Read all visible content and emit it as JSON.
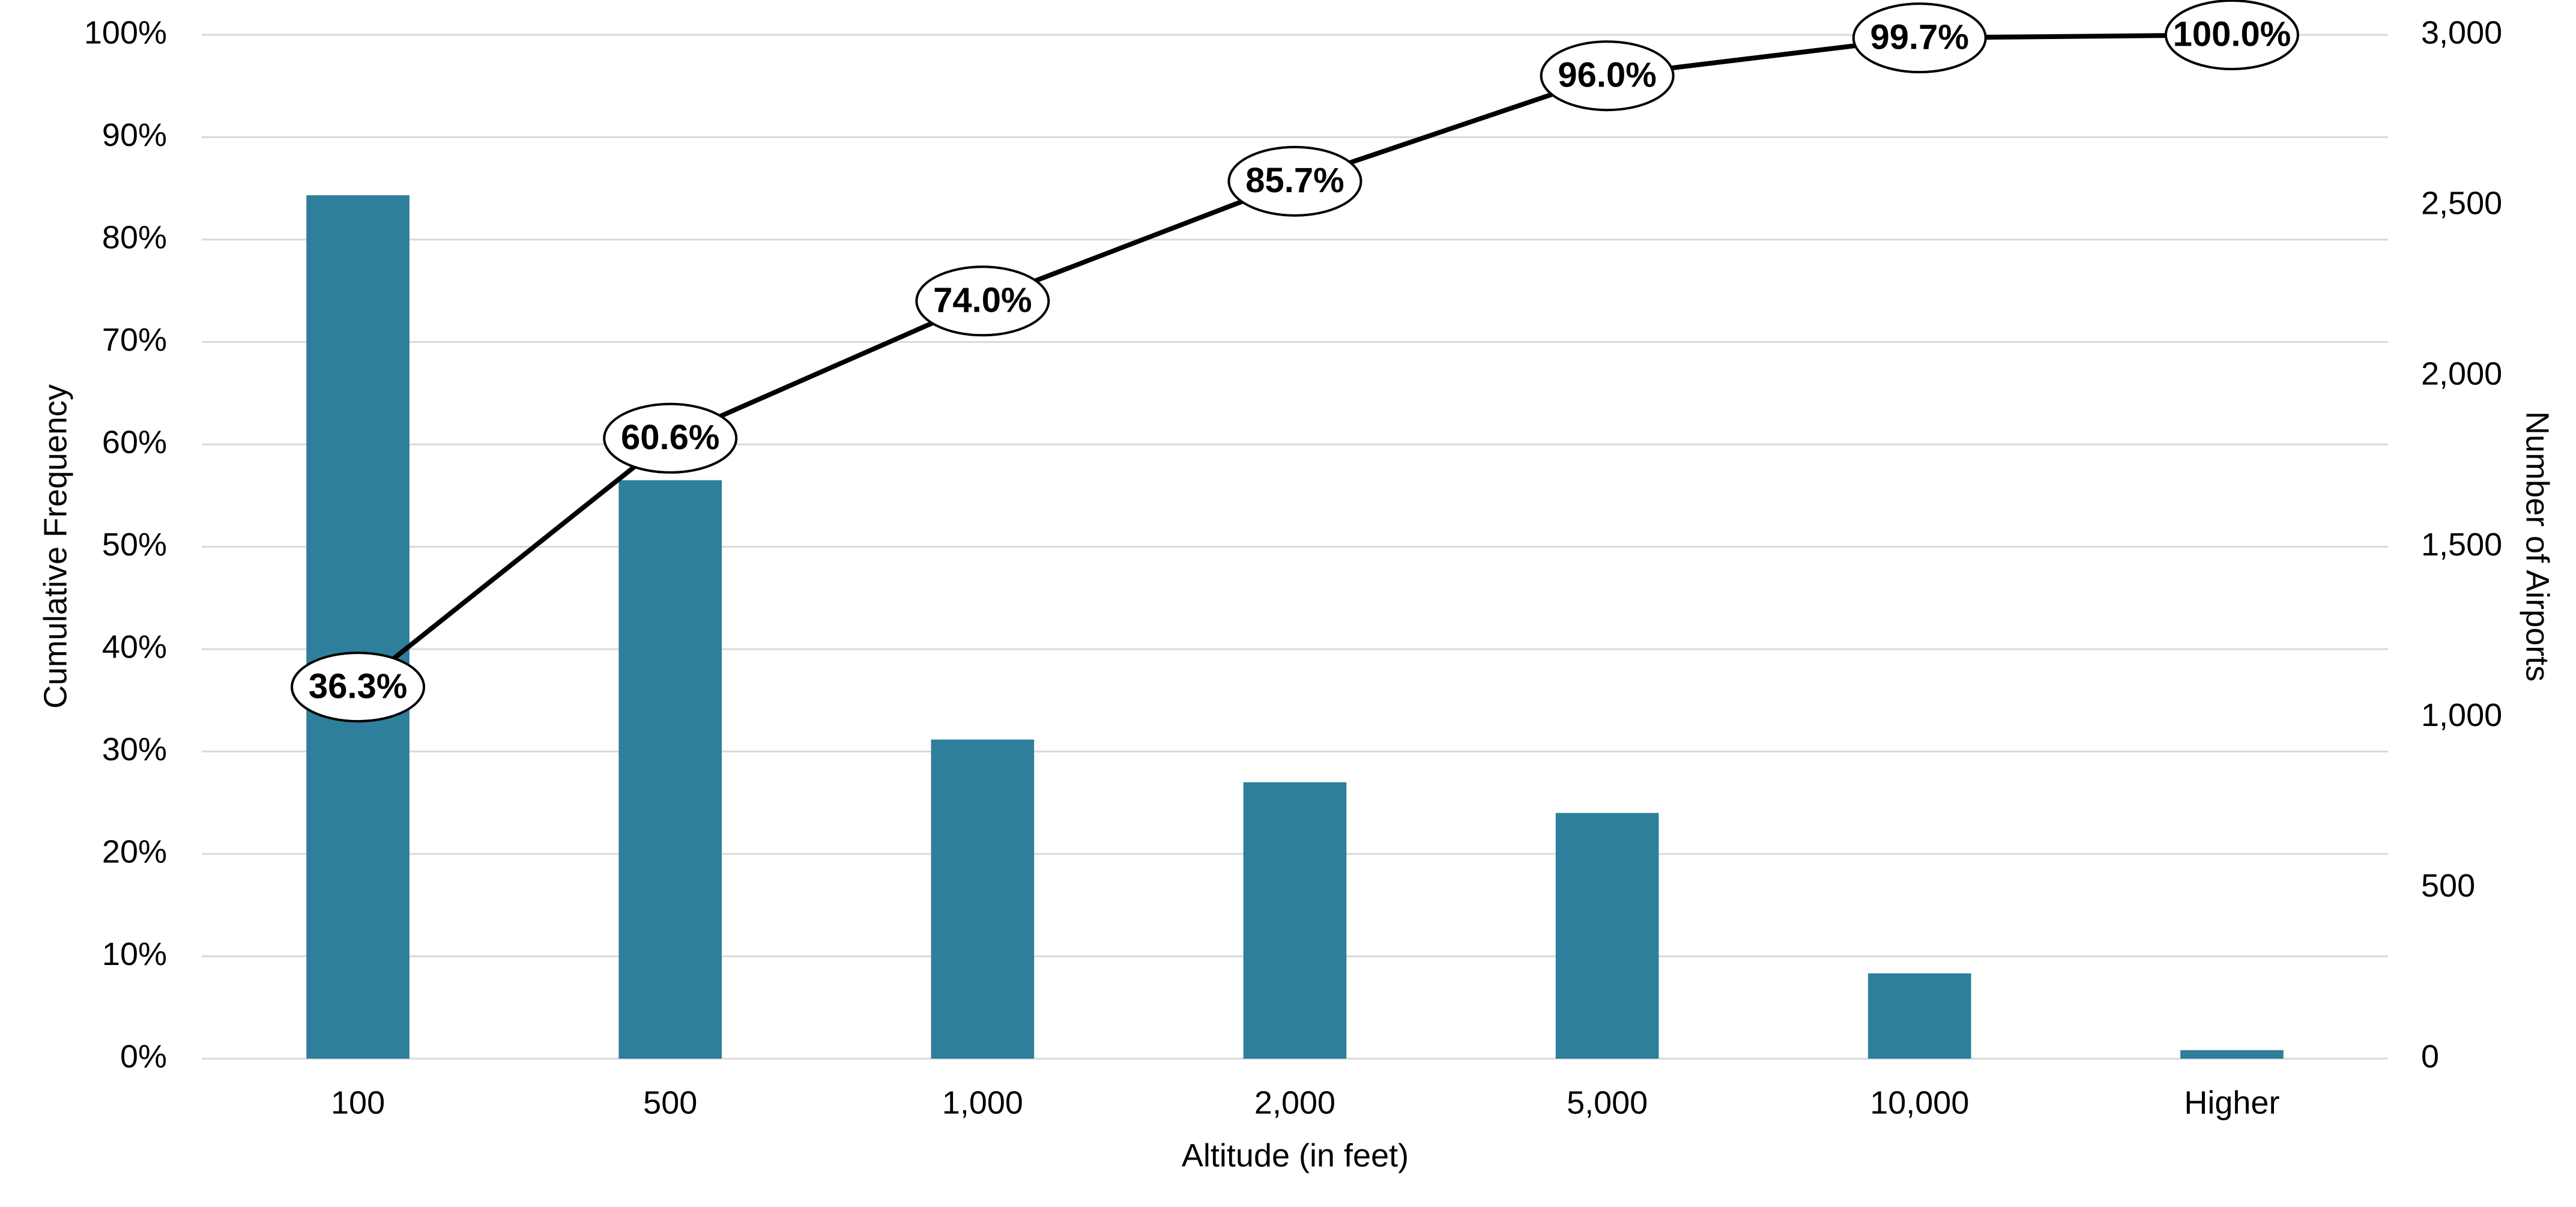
{
  "chart_data": {
    "type": "bar",
    "x_label": "Altitude (in feet)",
    "y_label": "Cumulative Frequency",
    "y2_label": "Number of Airports",
    "categories": [
      "100",
      "500",
      "1,000",
      "2,000",
      "5,000",
      "10,000",
      "Higher"
    ],
    "series": [
      {
        "name": "Number of Airports",
        "type": "bar",
        "axis": "y2",
        "color": "#2e7f9b",
        "values": [
          2530,
          1695,
          935,
          810,
          720,
          250,
          25
        ]
      },
      {
        "name": "Cumulative Frequency",
        "type": "line",
        "axis": "y",
        "color": "#000000",
        "values": [
          36.3,
          60.6,
          74.0,
          85.7,
          96.0,
          99.7,
          100.0
        ],
        "value_labels": [
          "36.3%",
          "60.6%",
          "74.0%",
          "85.7%",
          "96.0%",
          "99.7%",
          "100.0%"
        ]
      }
    ],
    "ylim": [
      0,
      100
    ],
    "yticks": [
      {
        "value": 0,
        "label": "0%"
      },
      {
        "value": 10,
        "label": "10%"
      },
      {
        "value": 20,
        "label": "20%"
      },
      {
        "value": 30,
        "label": "30%"
      },
      {
        "value": 40,
        "label": "40%"
      },
      {
        "value": 50,
        "label": "50%"
      },
      {
        "value": 60,
        "label": "60%"
      },
      {
        "value": 70,
        "label": "70%"
      },
      {
        "value": 80,
        "label": "80%"
      },
      {
        "value": 90,
        "label": "90%"
      },
      {
        "value": 100,
        "label": "100%"
      }
    ],
    "y2lim": [
      0,
      3000
    ],
    "y2ticks": [
      0,
      500,
      {
        "value": 1000,
        "label": "1,000"
      },
      {
        "value": 1500,
        "label": "1,500"
      },
      {
        "value": 2000,
        "label": "2,000"
      },
      {
        "value": 2500,
        "label": "2,500"
      },
      {
        "value": 3000,
        "label": "3,000"
      }
    ],
    "grid": true
  }
}
